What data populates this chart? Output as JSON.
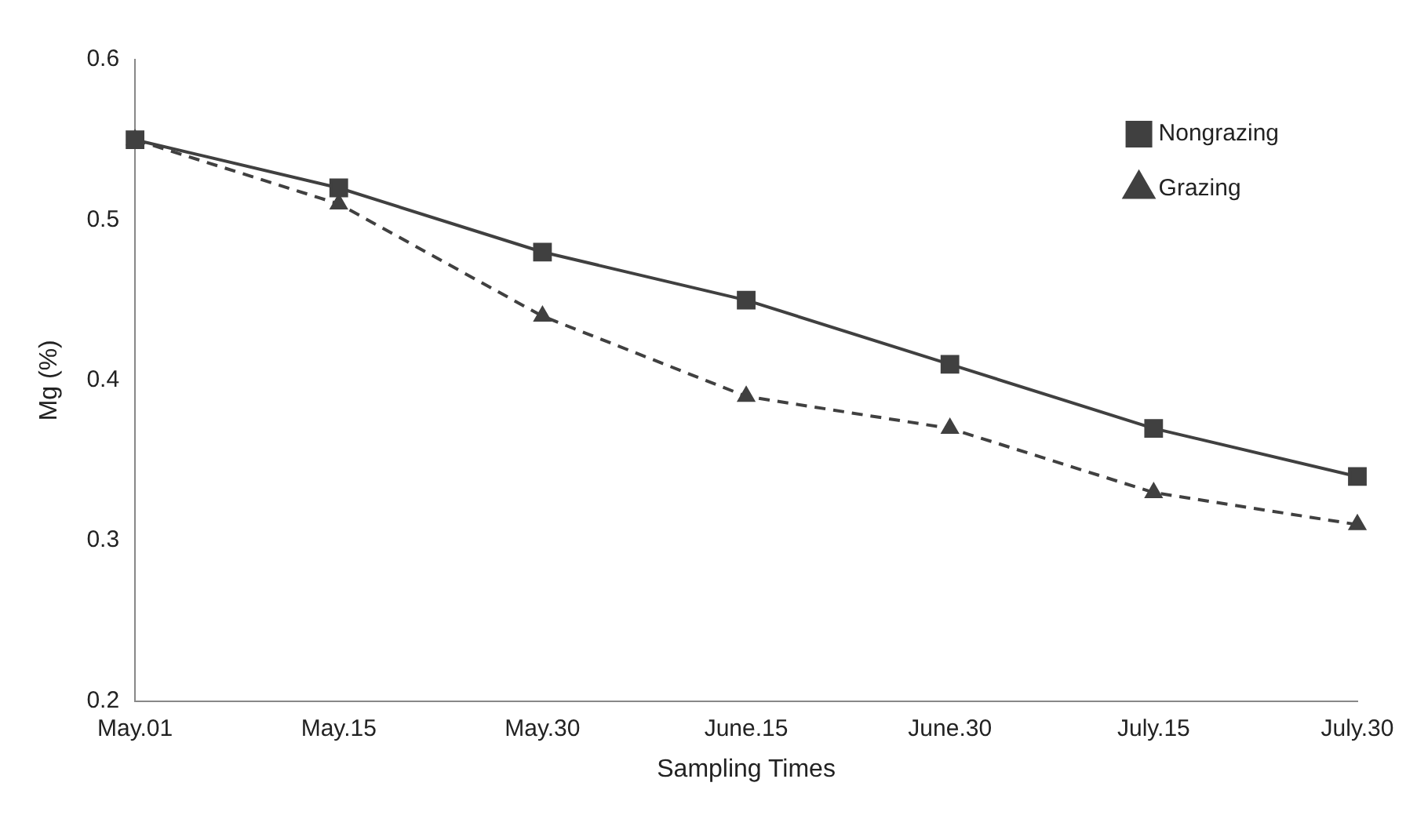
{
  "chart_data": {
    "type": "line",
    "xlabel": "Sampling Times",
    "ylabel": "Mg (%)",
    "categories": [
      "May.01",
      "May.15",
      "May.30",
      "June.15",
      "June.30",
      "July.15",
      "July.30"
    ],
    "series": [
      {
        "name": "Nongrazing",
        "color": "#404040",
        "marker": "square",
        "line_style": "solid",
        "values": [
          0.55,
          0.52,
          0.48,
          0.45,
          0.41,
          0.37,
          0.34
        ]
      },
      {
        "name": "Grazing",
        "color": "#404040",
        "marker": "triangle",
        "line_style": "dashed",
        "values": [
          0.55,
          0.51,
          0.44,
          0.39,
          0.37,
          0.33,
          0.31
        ]
      }
    ],
    "ylim": [
      0.2,
      0.6
    ],
    "yticks": [
      0.2,
      0.3,
      0.4,
      0.5,
      0.6
    ],
    "grid": false,
    "legend": "top right"
  }
}
